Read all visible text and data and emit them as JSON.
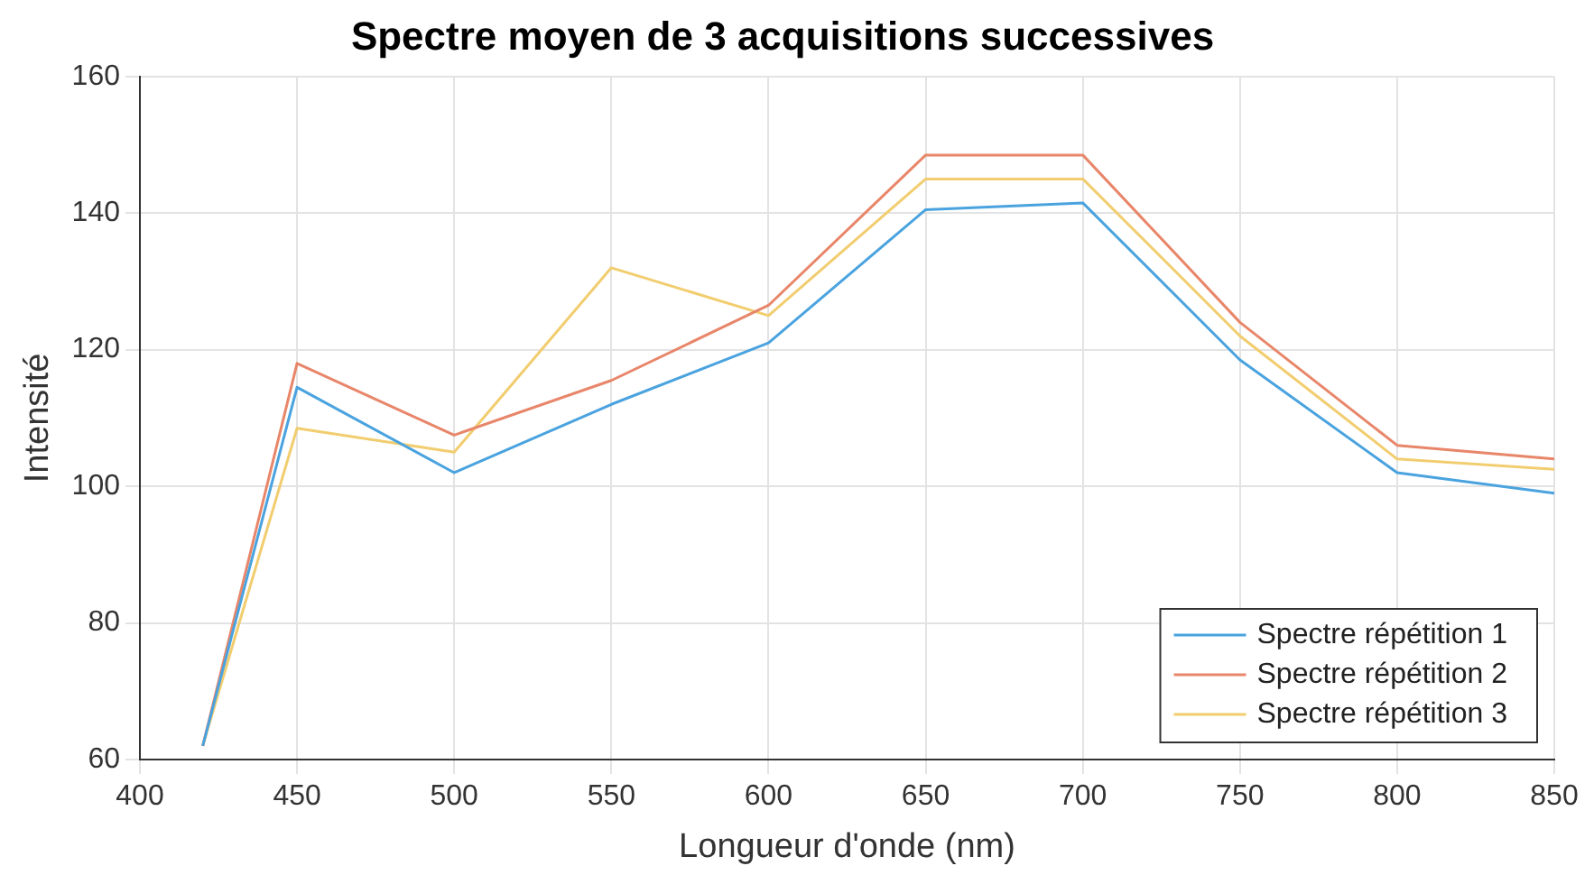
{
  "chart_data": {
    "type": "line",
    "title": "Spectre moyen de 3 acquisitions successives",
    "xlabel": "Longueur d'onde (nm)",
    "ylabel": "Intensité",
    "x": [
      420,
      450,
      500,
      550,
      600,
      650,
      700,
      750,
      800,
      850
    ],
    "series": [
      {
        "name": "Spectre répétition 1",
        "color": "#4aa3df",
        "values": [
          62,
          114.5,
          102,
          112,
          121,
          140.5,
          141.5,
          118.5,
          102,
          99
        ]
      },
      {
        "name": "Spectre répétition 2",
        "color": "#e8866a",
        "values": [
          62,
          118,
          107.5,
          115.5,
          126.5,
          148.5,
          148.5,
          124,
          106,
          104
        ]
      },
      {
        "name": "Spectre répétition 3",
        "color": "#f2cd6f",
        "values": [
          62,
          108.5,
          105,
          132,
          125,
          145,
          145,
          122,
          104,
          102.5
        ]
      }
    ],
    "xlim": [
      400,
      850
    ],
    "xticks": [
      400,
      450,
      500,
      550,
      600,
      650,
      700,
      750,
      800,
      850
    ],
    "ylim": [
      60,
      160
    ],
    "yticks": [
      60,
      80,
      100,
      120,
      140,
      160
    ],
    "grid": true,
    "legend": "bottom right",
    "marker": "none",
    "line_style": "solid"
  }
}
